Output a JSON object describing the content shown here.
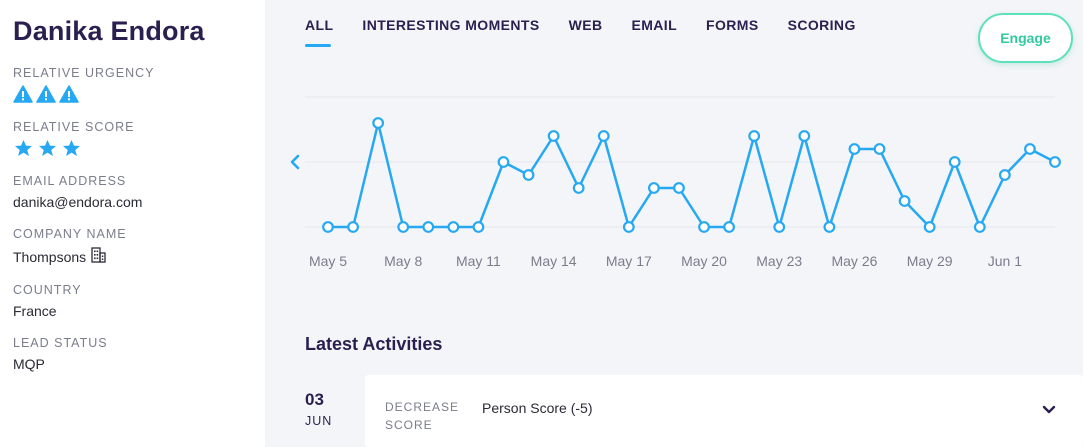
{
  "lead": {
    "name": "Danika Endora",
    "fields": {
      "urgency": {
        "label": "RELATIVE URGENCY",
        "level": 3,
        "max": 3,
        "icon": "warning-icon"
      },
      "score": {
        "label": "RELATIVE SCORE",
        "level": 3,
        "max": 3,
        "icon": "star-icon"
      },
      "email": {
        "label": "EMAIL ADDRESS",
        "value": "danika@endora.com"
      },
      "company": {
        "label": "COMPANY NAME",
        "value": "Thompsons",
        "icon": "building-icon"
      },
      "country": {
        "label": "COUNTRY",
        "value": "France"
      },
      "status": {
        "label": "LEAD STATUS",
        "value": "MQP"
      }
    }
  },
  "tabs": [
    {
      "label": "ALL",
      "active": true
    },
    {
      "label": "INTERESTING MOMENTS",
      "active": false
    },
    {
      "label": "WEB",
      "active": false
    },
    {
      "label": "EMAIL",
      "active": false
    },
    {
      "label": "FORMS",
      "active": false
    },
    {
      "label": "SCORING",
      "active": false
    }
  ],
  "engage_label": "Engage",
  "colors": {
    "accent": "#26a8f3",
    "engage": "#33c99e",
    "title": "#2a1f4f",
    "muted": "#7b7d8c",
    "panel": "#f4f5f8"
  },
  "chart_data": {
    "type": "line",
    "x_tick_labels": [
      "May 5",
      "May 8",
      "May 11",
      "May 14",
      "May 17",
      "May 20",
      "May 23",
      "May 26",
      "May 29",
      "Jun 1"
    ],
    "x": [
      "May 5",
      "May 6",
      "May 7",
      "May 8",
      "May 9",
      "May 10",
      "May 11",
      "May 12",
      "May 13",
      "May 14",
      "May 15",
      "May 16",
      "May 17",
      "May 18",
      "May 19",
      "May 20",
      "May 21",
      "May 22",
      "May 23",
      "May 24",
      "May 25",
      "May 26",
      "May 27",
      "May 28",
      "May 29",
      "May 30",
      "May 31",
      "Jun 1",
      "Jun 2",
      "Jun 3"
    ],
    "series": [
      {
        "values": [
          0,
          0,
          8,
          0,
          0,
          0,
          0,
          5,
          4,
          7,
          3,
          7,
          0,
          3,
          3,
          0,
          0,
          7,
          0,
          7,
          0,
          6,
          6,
          2,
          0,
          5,
          0,
          4,
          6,
          5
        ]
      }
    ],
    "ylim": [
      0,
      10
    ],
    "grid": true
  },
  "activities": {
    "title": "Latest Activities",
    "items": [
      {
        "day": "03",
        "month": "JUN",
        "type_line1": "DECREASE",
        "type_line2": "SCORE",
        "description": "Person Score (-5)"
      }
    ]
  }
}
